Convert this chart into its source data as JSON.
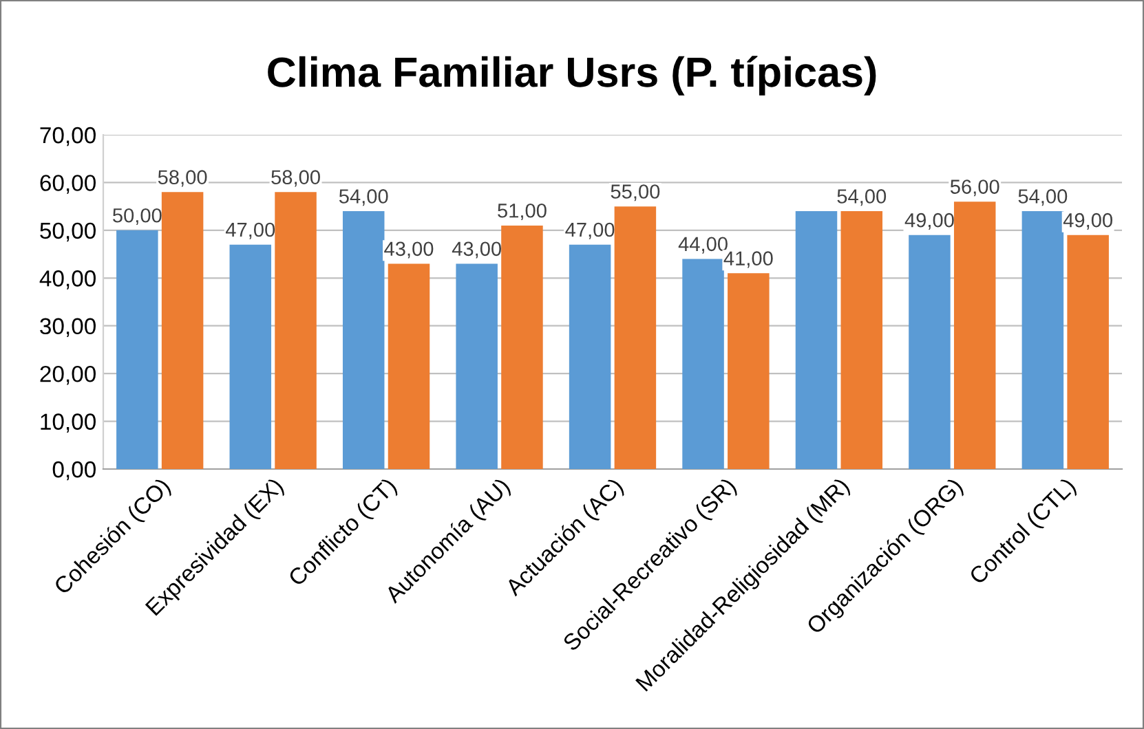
{
  "chart_data": {
    "type": "bar",
    "title": "Clima Familiar Usrs (P. típicas)",
    "categories": [
      "Cohesión (CO)",
      "Expresividad (EX)",
      "Conflicto (CT)",
      "Autonomía (AU)",
      "Actuación (AC)",
      "Social-Recreativo (SR)",
      "Moralidad-Religiosidad (MR)",
      "Organización (ORG)",
      "Control (CTL)"
    ],
    "series": [
      {
        "color": "#5b9bd5",
        "values": [
          50,
          47,
          54,
          43,
          47,
          44,
          54,
          49,
          54
        ],
        "value_labels": [
          "50,00",
          "47,00",
          "54,00",
          "43,00",
          "47,00",
          "44,00",
          null,
          "49,00",
          "54,00"
        ]
      },
      {
        "color": "#ed7d31",
        "values": [
          58,
          58,
          43,
          51,
          55,
          41,
          54,
          56,
          49
        ],
        "value_labels": [
          "58,00",
          "58,00",
          "43,00",
          "51,00",
          "55,00",
          "41,00",
          "54,00",
          "56,00",
          "49,00"
        ]
      }
    ],
    "ylim": [
      0,
      70
    ],
    "yticks": [
      {
        "value": 0,
        "label": "0,00"
      },
      {
        "value": 10,
        "label": "10,00"
      },
      {
        "value": 20,
        "label": "20,00"
      },
      {
        "value": 30,
        "label": "30,00"
      },
      {
        "value": 40,
        "label": "40,00"
      },
      {
        "value": 50,
        "label": "50,00"
      },
      {
        "value": 60,
        "label": "60,00"
      },
      {
        "value": 70,
        "label": "70,00"
      }
    ],
    "grid": "y",
    "legend": false
  }
}
